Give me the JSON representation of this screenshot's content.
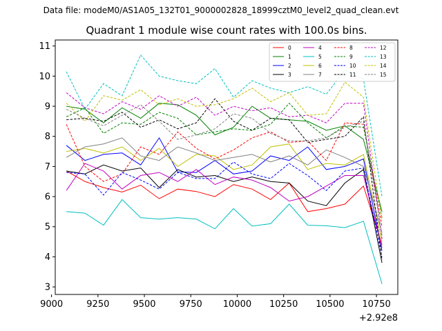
{
  "header": {
    "data_file": "Data file: modeM0/AS1A05_132T01_9000002828_18999cztM0_level2_quad_clean.evt"
  },
  "chart_data": {
    "type": "line",
    "title": "Quadrant 1 module wise count rates with 100.0s bins.",
    "xlabel": "",
    "ylabel": "",
    "x_offset_label": "+2.92e8",
    "xlim": [
      9020,
      10865
    ],
    "ylim": [
      2.75,
      11.2
    ],
    "xticks": [
      9000,
      9250,
      9500,
      9750,
      10000,
      10250,
      10500,
      10750
    ],
    "yticks": [
      3,
      4,
      5,
      6,
      7,
      8,
      9,
      10,
      11
    ],
    "x": [
      9080,
      9180,
      9280,
      9380,
      9480,
      9580,
      9680,
      9780,
      9880,
      9980,
      10080,
      10180,
      10280,
      10380,
      10480,
      10580,
      10680,
      10780
    ],
    "legend_position": "top-right",
    "series": [
      {
        "name": "0",
        "color": "#ff0000",
        "style": "solid",
        "values": [
          6.85,
          6.5,
          6.3,
          6.15,
          6.38,
          5.93,
          6.25,
          6.17,
          6.0,
          6.4,
          6.25,
          5.9,
          6.45,
          5.5,
          5.6,
          5.75,
          6.35,
          4.4
        ]
      },
      {
        "name": "1",
        "color": "#008000",
        "style": "solid",
        "values": [
          9.0,
          8.9,
          8.45,
          8.95,
          8.6,
          9.1,
          9.05,
          8.7,
          8.05,
          8.3,
          9.0,
          8.6,
          8.55,
          8.5,
          8.2,
          8.35,
          7.9,
          5.5
        ]
      },
      {
        "name": "2",
        "color": "#0000ff",
        "style": "solid",
        "values": [
          7.7,
          7.2,
          7.4,
          7.45,
          7.05,
          7.95,
          6.82,
          6.8,
          7.2,
          6.75,
          6.85,
          7.35,
          7.2,
          7.65,
          6.9,
          7.0,
          7.25,
          4.2
        ]
      },
      {
        "name": "3",
        "color": "#000000",
        "style": "solid",
        "values": [
          6.85,
          6.75,
          7.05,
          6.85,
          6.95,
          6.3,
          6.9,
          6.65,
          6.7,
          6.5,
          6.65,
          6.5,
          6.45,
          5.85,
          5.7,
          6.45,
          6.9,
          3.8
        ]
      },
      {
        "name": "4",
        "color": "#c000c0",
        "style": "solid",
        "values": [
          6.2,
          7.1,
          6.85,
          6.25,
          6.7,
          6.8,
          6.5,
          6.9,
          6.4,
          6.65,
          6.55,
          6.3,
          5.85,
          6.0,
          6.35,
          6.7,
          6.7,
          4.3
        ]
      },
      {
        "name": "5",
        "color": "#00bfbf",
        "style": "solid",
        "values": [
          5.5,
          5.45,
          5.05,
          5.9,
          5.3,
          5.25,
          5.3,
          5.25,
          4.93,
          5.6,
          5.02,
          5.1,
          5.75,
          5.05,
          5.03,
          4.97,
          5.18,
          3.1
        ]
      },
      {
        "name": "6",
        "color": "#bfbf00",
        "style": "solid",
        "values": [
          7.5,
          7.6,
          7.45,
          7.65,
          7.2,
          7.6,
          7.0,
          7.4,
          7.35,
          6.9,
          7.05,
          7.65,
          7.75,
          6.9,
          7.1,
          7.05,
          7.4,
          4.5
        ]
      },
      {
        "name": "7",
        "color": "#808080",
        "style": "solid",
        "values": [
          7.3,
          7.65,
          7.75,
          7.95,
          7.35,
          7.2,
          7.65,
          7.45,
          7.2,
          7.3,
          7.4,
          7.15,
          7.35,
          7.05,
          7.55,
          7.3,
          7.0,
          4.8
        ]
      },
      {
        "name": "8",
        "color": "#ff0000",
        "style": "dashed",
        "values": [
          8.4,
          7.0,
          6.5,
          6.75,
          7.65,
          7.4,
          8.15,
          7.6,
          7.25,
          7.55,
          7.95,
          8.15,
          7.8,
          7.85,
          7.2,
          8.45,
          8.4,
          5.0
        ]
      },
      {
        "name": "9",
        "color": "#008000",
        "style": "dashed",
        "values": [
          8.65,
          8.95,
          8.1,
          8.45,
          8.4,
          8.8,
          8.6,
          8.05,
          8.15,
          8.25,
          8.2,
          8.4,
          9.1,
          8.45,
          7.95,
          8.35,
          8.3,
          5.3
        ]
      },
      {
        "name": "10",
        "color": "#0000ff",
        "style": "dashed",
        "values": [
          6.8,
          6.75,
          6.05,
          6.8,
          6.55,
          6.25,
          6.8,
          6.6,
          6.6,
          7.15,
          6.75,
          6.6,
          7.1,
          6.7,
          6.2,
          6.85,
          6.95,
          4.0
        ]
      },
      {
        "name": "11",
        "color": "#000000",
        "style": "dashed",
        "values": [
          8.55,
          8.6,
          8.5,
          8.8,
          8.3,
          8.55,
          8.25,
          8.45,
          9.25,
          8.5,
          8.2,
          8.6,
          8.55,
          7.8,
          7.9,
          8.0,
          8.65,
          3.9
        ]
      },
      {
        "name": "12",
        "color": "#c000c0",
        "style": "dashed",
        "values": [
          9.45,
          8.95,
          8.75,
          9.15,
          8.9,
          9.35,
          9.0,
          9.3,
          8.7,
          9.0,
          8.85,
          8.95,
          8.65,
          8.7,
          8.45,
          9.1,
          9.1,
          4.6
        ]
      },
      {
        "name": "13",
        "color": "#00bfbf",
        "style": "dashed",
        "values": [
          10.15,
          8.9,
          9.75,
          9.35,
          10.7,
          10.0,
          9.85,
          9.75,
          10.25,
          9.3,
          9.85,
          9.6,
          9.45,
          9.65,
          9.4,
          10.2,
          9.9,
          6.0
        ]
      },
      {
        "name": "14",
        "color": "#bfbf00",
        "style": "dashed",
        "values": [
          9.1,
          8.5,
          9.35,
          9.2,
          9.55,
          9.05,
          9.25,
          9.0,
          9.05,
          9.25,
          9.6,
          9.15,
          9.45,
          8.7,
          8.75,
          9.8,
          9.3,
          5.2
        ]
      },
      {
        "name": "15",
        "color": "#808080",
        "style": "dashed",
        "values": [
          8.9,
          8.6,
          8.35,
          8.7,
          9.05,
          8.5,
          7.9,
          8.05,
          8.25,
          8.75,
          8.6,
          8.1,
          7.85,
          7.85,
          7.95,
          8.3,
          8.5,
          4.7
        ]
      }
    ]
  }
}
